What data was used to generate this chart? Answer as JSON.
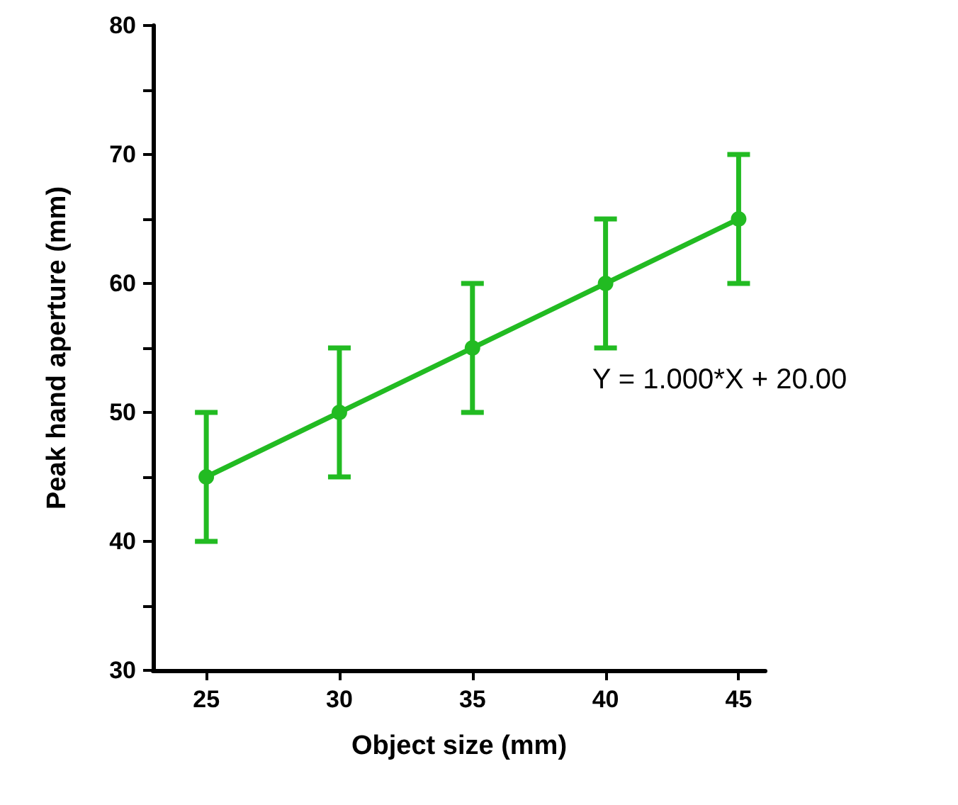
{
  "chart_data": {
    "type": "line",
    "xlabel": "Object size (mm)",
    "ylabel": "Peak hand aperture (mm)",
    "x": [
      25,
      30,
      35,
      40,
      45
    ],
    "series": [
      {
        "color": "#22bb22",
        "values": [
          45,
          50,
          55,
          60,
          65
        ],
        "errors": [
          5,
          5,
          5,
          5,
          5
        ]
      }
    ],
    "xlim": [
      23,
      46
    ],
    "xticks": [
      25,
      30,
      35,
      40,
      45
    ],
    "ylim": [
      30,
      80
    ],
    "yticks": [
      30,
      {
        "value": 35,
        "label": null
      },
      40,
      {
        "value": 45,
        "label": null
      },
      50,
      {
        "value": 55,
        "label": null
      },
      60,
      {
        "value": 65,
        "label": null
      },
      70,
      {
        "value": 75,
        "label": null
      },
      80
    ],
    "annotations": [
      "Y = 1.000*X + 20.00"
    ],
    "grid": false,
    "marker": "circle",
    "line_style": "solid"
  }
}
